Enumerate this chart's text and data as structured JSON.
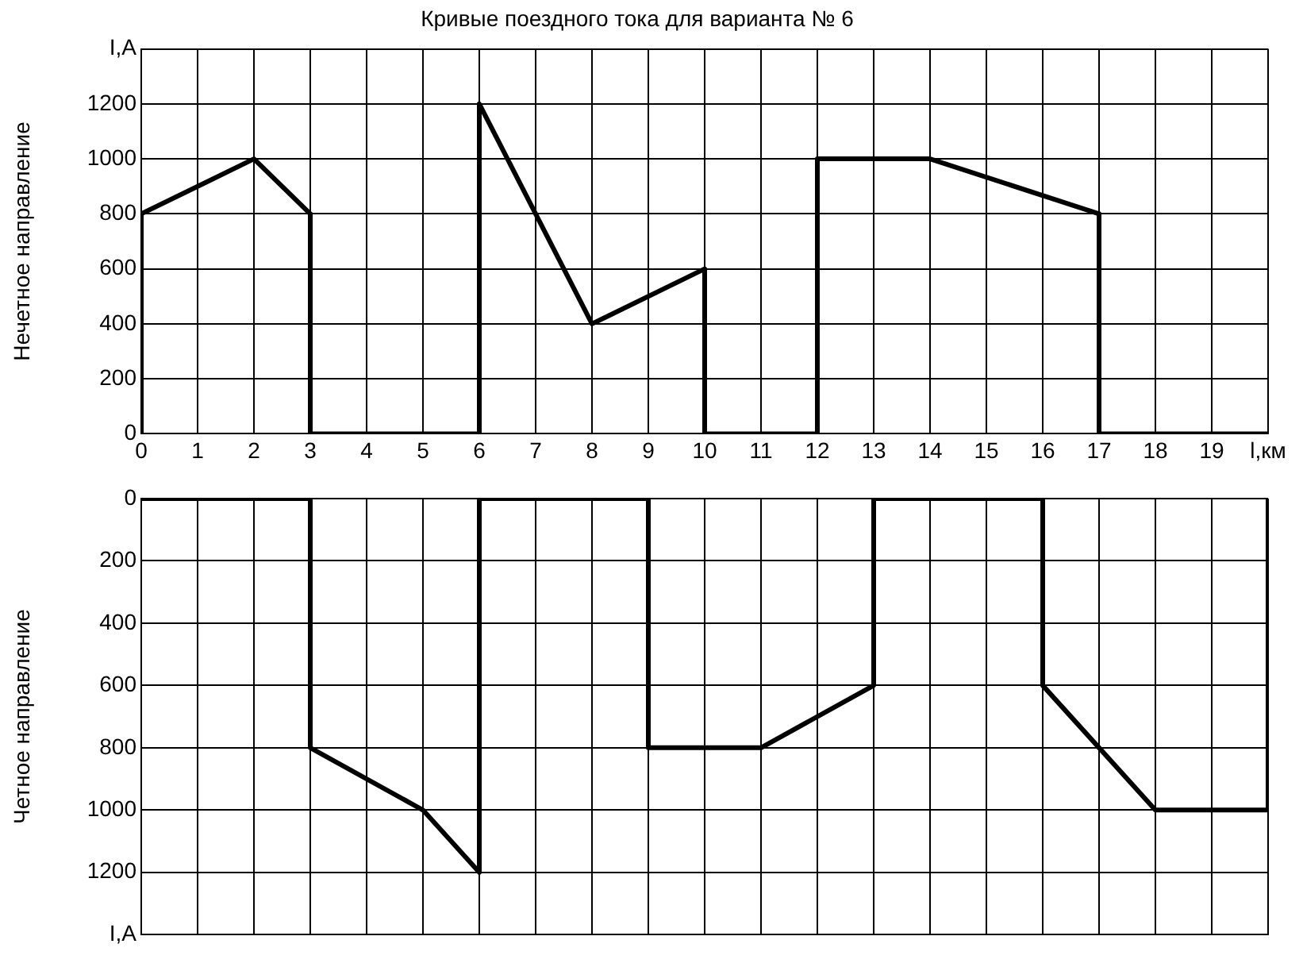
{
  "chart_data": [
    {
      "type": "line",
      "title": "Кривые поездного тока для варианта № 6",
      "ylabel": "Нечетное направление",
      "xlim": [
        0,
        20
      ],
      "xticks": [
        0,
        1,
        2,
        3,
        4,
        5,
        6,
        7,
        8,
        9,
        10,
        11,
        12,
        13,
        14,
        15,
        16,
        17,
        18,
        19,
        {
          "value": 20,
          "label": "l,км"
        }
      ],
      "ylim": [
        0,
        1400
      ],
      "yticks": [
        0,
        200,
        400,
        600,
        800,
        1000,
        1200,
        {
          "value": 1400,
          "label": "I,A"
        }
      ],
      "grid": true,
      "legend": false,
      "marker": "none",
      "line_style": "solid",
      "series": [
        {
          "color": "#000000",
          "x": [
            0,
            0,
            2,
            3,
            3,
            6,
            6,
            8,
            10,
            10,
            12,
            12,
            14,
            17,
            17,
            20
          ],
          "values": [
            0,
            800,
            1000,
            800,
            0,
            0,
            1200,
            400,
            600,
            0,
            0,
            1000,
            1000,
            800,
            0,
            0
          ]
        }
      ]
    },
    {
      "type": "line",
      "ylabel": "Четное направление",
      "xlim": [
        0,
        20
      ],
      "xticks": [
        0,
        1,
        2,
        3,
        4,
        5,
        6,
        7,
        8,
        9,
        10,
        11,
        12,
        13,
        14,
        15,
        16,
        17,
        18,
        19,
        20
      ],
      "ylim": [
        1400,
        0
      ],
      "yticks": [
        0,
        200,
        400,
        600,
        800,
        1000,
        1200,
        {
          "value": 1400,
          "label": "I,A"
        }
      ],
      "grid": true,
      "legend": false,
      "marker": "none",
      "line_style": "solid",
      "tick_labels": "y",
      "series": [
        {
          "color": "#000000",
          "x": [
            0,
            3,
            3,
            5,
            6,
            6,
            9,
            9,
            11,
            13,
            13,
            16,
            16,
            18,
            20,
            20
          ],
          "values": [
            0,
            0,
            800,
            1000,
            1200,
            0,
            0,
            800,
            800,
            600,
            0,
            0,
            600,
            1000,
            1000,
            0
          ]
        }
      ]
    }
  ]
}
